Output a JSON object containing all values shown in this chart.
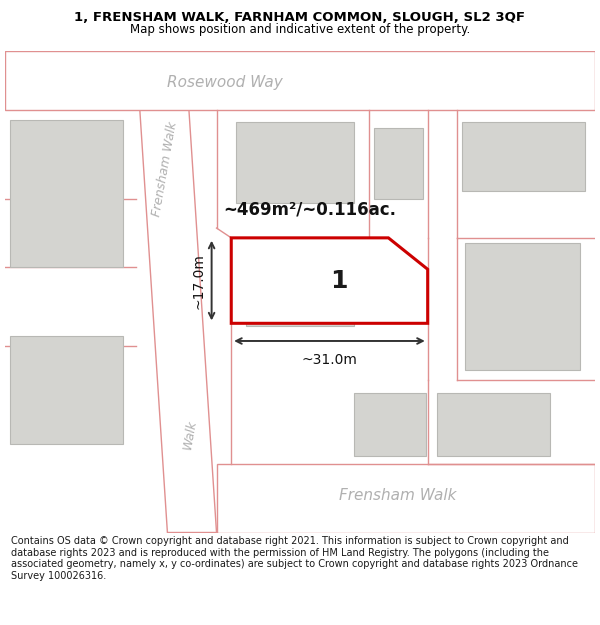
{
  "title_line1": "1, FRENSHAM WALK, FARNHAM COMMON, SLOUGH, SL2 3QF",
  "title_line2": "Map shows position and indicative extent of the property.",
  "footer": "Contains OS data © Crown copyright and database right 2021. This information is subject to Crown copyright and database rights 2023 and is reproduced with the permission of HM Land Registry. The polygons (including the associated geometry, namely x, y co-ordinates) are subject to Crown copyright and database rights 2023 Ordnance Survey 100026316.",
  "map_bg": "#f2f2ee",
  "road_bg": "#ffffff",
  "plot_border_color": "#cc0000",
  "plot_fill": "#ffffff",
  "building_color": "#d4d4d0",
  "building_edge": "#b8b8b4",
  "road_line_color": "#e09090",
  "parcel_line_color": "#e09090",
  "dim_line_color": "#333333",
  "area_text": "~469m²/~0.116ac.",
  "width_text": "~31.0m",
  "height_text": "~17.0m",
  "plot_label": "1",
  "street_rosewood": "Rosewood Way",
  "street_frensham_diag1": "Frensham Walk",
  "street_frensham_diag2": "Walk",
  "street_frensham_horiz": "Frensham Walk",
  "street_color": "#b0b0b0"
}
